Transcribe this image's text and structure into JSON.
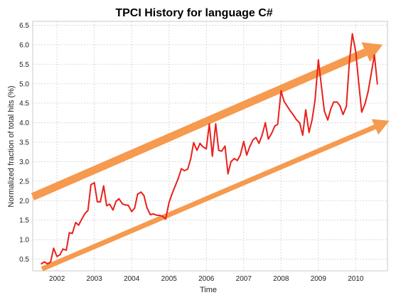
{
  "chart_data": {
    "type": "line",
    "title": "TPCI History for language C#",
    "xlabel": "Time",
    "ylabel": "Normalized fraction of total hits (%)",
    "xlim": [
      2001.35,
      2010.85
    ],
    "ylim": [
      0.2,
      6.6
    ],
    "x_ticks": [
      "2002",
      "2003",
      "2004",
      "2005",
      "2006",
      "2007",
      "2008",
      "2009",
      "2010"
    ],
    "y_ticks": [
      "0.5",
      "1.0",
      "1.5",
      "2.0",
      "2.5",
      "3.0",
      "3.5",
      "4.0",
      "4.5",
      "5.0",
      "5.5",
      "6.0",
      "6.5"
    ],
    "grid": true,
    "line_color": "#e8211b",
    "arrow_color": "#f59a4e",
    "series": [
      {
        "x": [
          2001.58,
          2001.66,
          2001.75,
          2001.83,
          2001.91,
          2002.0,
          2002.08,
          2002.16,
          2002.25,
          2002.33,
          2002.41,
          2002.5,
          2002.58,
          2002.66,
          2002.75,
          2002.83,
          2002.91,
          2003.0,
          2003.08,
          2003.16,
          2003.25,
          2003.33,
          2003.41,
          2003.5,
          2003.58,
          2003.66,
          2003.75,
          2003.83,
          2003.91,
          2004.0,
          2004.08,
          2004.16,
          2004.25,
          2004.33,
          2004.41,
          2004.5,
          2004.58,
          2004.66,
          2004.75,
          2004.83,
          2004.91,
          2005.0,
          2005.08,
          2005.16,
          2005.25,
          2005.33,
          2005.41,
          2005.5,
          2005.58,
          2005.66,
          2005.75,
          2005.83,
          2005.91,
          2006.0,
          2006.08,
          2006.16,
          2006.25,
          2006.33,
          2006.41,
          2006.5,
          2006.58,
          2006.66,
          2006.75,
          2006.83,
          2006.91,
          2007.0,
          2007.08,
          2007.16,
          2007.25,
          2007.33,
          2007.41,
          2007.5,
          2007.58,
          2007.66,
          2007.75,
          2007.83,
          2007.91,
          2008.0,
          2008.08,
          2008.16,
          2008.25,
          2008.33,
          2008.41,
          2008.5,
          2008.58,
          2008.66,
          2008.75,
          2008.83,
          2008.91,
          2009.0,
          2009.08,
          2009.16,
          2009.25,
          2009.33,
          2009.41,
          2009.5,
          2009.58,
          2009.66,
          2009.75,
          2009.83,
          2009.91,
          2010.0,
          2010.08,
          2010.16,
          2010.25,
          2010.33,
          2010.41,
          2010.5,
          2010.58
        ],
        "y": [
          0.38,
          0.43,
          0.38,
          0.43,
          0.78,
          0.57,
          0.61,
          0.76,
          0.73,
          1.18,
          1.16,
          1.44,
          1.37,
          1.52,
          1.67,
          1.75,
          2.41,
          2.46,
          1.97,
          1.97,
          2.38,
          1.87,
          1.91,
          1.76,
          1.98,
          2.05,
          1.92,
          1.89,
          1.88,
          1.72,
          1.81,
          2.17,
          2.22,
          2.13,
          1.82,
          1.64,
          1.66,
          1.63,
          1.62,
          1.6,
          1.53,
          1.95,
          2.17,
          2.36,
          2.58,
          2.82,
          2.77,
          2.81,
          3.07,
          3.49,
          3.29,
          3.47,
          3.38,
          3.33,
          3.97,
          3.14,
          3.97,
          3.29,
          3.27,
          3.4,
          2.69,
          3.0,
          3.08,
          3.03,
          3.17,
          3.52,
          3.17,
          3.38,
          3.56,
          3.62,
          3.47,
          3.7,
          4.0,
          3.58,
          3.73,
          3.91,
          3.96,
          4.82,
          4.55,
          4.43,
          4.3,
          4.2,
          4.08,
          3.99,
          3.68,
          4.33,
          3.75,
          4.07,
          4.57,
          5.61,
          4.95,
          4.3,
          4.07,
          4.35,
          4.53,
          4.53,
          4.43,
          4.21,
          4.42,
          5.56,
          6.28,
          5.82,
          5.02,
          4.27,
          4.49,
          4.79,
          5.23,
          5.74,
          4.99
        ]
      }
    ],
    "arrows": [
      {
        "from": [
          2001.35,
          2.1
        ],
        "to": [
          2010.72,
          6.0
        ]
      },
      {
        "from": [
          2001.6,
          0.25
        ],
        "to": [
          2010.9,
          4.05
        ]
      }
    ]
  }
}
